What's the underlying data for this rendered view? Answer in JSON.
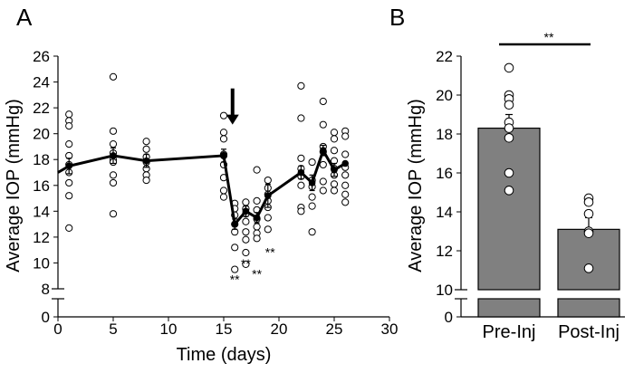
{
  "chart_data": [
    {
      "panel_label": "A",
      "type": "line",
      "title": "",
      "xlabel": "Time (days)",
      "ylabel": "Average IOP (mmHg)",
      "xlim": [
        0,
        30
      ],
      "ylim_upper": [
        8,
        26
      ],
      "ylim_lower": [
        0,
        1
      ],
      "xticks": [
        "0",
        "5",
        "10",
        "15",
        "20",
        "25",
        "30"
      ],
      "yticks_upper": [
        "8",
        "10",
        "12",
        "14",
        "16",
        "18",
        "20",
        "22",
        "24",
        "26"
      ],
      "yticks_lower": [
        "0"
      ],
      "mean_series": {
        "name": "Mean IOP",
        "x": [
          0,
          1,
          5,
          8,
          15,
          16,
          17,
          18,
          19,
          22,
          23,
          24,
          25,
          26
        ],
        "y": [
          17.0,
          17.5,
          18.3,
          17.9,
          18.3,
          13.0,
          14.0,
          13.5,
          15.2,
          17.0,
          16.2,
          18.7,
          17.2,
          17.7
        ],
        "sem": [
          0,
          0.6,
          0.6,
          0.5,
          0.5,
          0.4,
          0.4,
          0.4,
          0.9,
          0.5,
          0.6,
          0.4,
          0.5,
          0
        ]
      },
      "individual_points": [
        {
          "x": 1,
          "y": [
            21.5,
            21.0,
            20.6,
            19.2,
            18.3,
            17.6,
            17.0,
            16.2,
            15.2,
            12.7
          ]
        },
        {
          "x": 5,
          "y": [
            24.4,
            20.2,
            19.2,
            18.5,
            18.0,
            17.8,
            16.8,
            16.2,
            13.8
          ]
        },
        {
          "x": 8,
          "y": [
            19.4,
            18.8,
            18.2,
            17.8,
            17.3,
            16.8,
            16.4
          ]
        },
        {
          "x": 15,
          "y": [
            21.4,
            20.1,
            19.6,
            18.4,
            18.3,
            17.6,
            16.6,
            15.6,
            15.1
          ]
        },
        {
          "x": 16,
          "y": [
            14.6,
            14.2,
            13.7,
            13.0,
            12.4,
            11.2,
            9.5
          ]
        },
        {
          "x": 17,
          "y": [
            14.7,
            14.2,
            13.8,
            13.2,
            12.4,
            11.8,
            10.8,
            9.9
          ]
        },
        {
          "x": 18,
          "y": [
            17.2,
            14.8,
            14.1,
            13.4,
            12.8,
            12.3,
            11.9
          ]
        },
        {
          "x": 19,
          "y": [
            16.4,
            15.8,
            15.3,
            14.8,
            14.3,
            13.5,
            12.6
          ]
        },
        {
          "x": 22,
          "y": [
            23.7,
            21.2,
            18.1,
            17.3,
            16.7,
            16.0,
            14.3,
            14.0
          ]
        },
        {
          "x": 23,
          "y": [
            17.8,
            16.4,
            15.9,
            15.1,
            14.4,
            12.4
          ]
        },
        {
          "x": 24,
          "y": [
            22.5,
            20.7,
            19.0,
            18.6,
            17.6,
            16.3,
            15.6
          ]
        },
        {
          "x": 25,
          "y": [
            20.1,
            19.6,
            18.7,
            17.9,
            17.3,
            16.8,
            16.1,
            15.6
          ]
        },
        {
          "x": 26,
          "y": [
            20.2,
            19.8,
            18.4,
            17.4,
            16.8,
            16.0,
            15.3,
            14.7
          ]
        }
      ],
      "annotations": [
        {
          "text": "**",
          "x": 16,
          "y": 8.4
        },
        {
          "text": "**",
          "x": 17,
          "y": 9.6
        },
        {
          "text": "**",
          "x": 18,
          "y": 8.8
        },
        {
          "text": "**",
          "x": 19.2,
          "y": 10.5
        }
      ],
      "arrow": {
        "x": 15.8,
        "from_y": 23.5,
        "to_y": 20.7
      }
    },
    {
      "panel_label": "B",
      "type": "bar",
      "title": "",
      "xlabel": "",
      "ylabel": "Average IOP (mmHg)",
      "categories": [
        "Pre-Inj",
        "Post-Inj"
      ],
      "values": [
        18.3,
        13.1
      ],
      "sem": [
        0.7,
        0.6
      ],
      "bar_color": "#808080",
      "ylim_upper": [
        10,
        22
      ],
      "ylim_lower": [
        0,
        1
      ],
      "yticks_upper": [
        "10",
        "12",
        "14",
        "16",
        "18",
        "20",
        "22"
      ],
      "yticks_lower": [
        "0"
      ],
      "individual_points": [
        {
          "category": "Pre-Inj",
          "y": [
            21.4,
            20.0,
            19.8,
            19.5,
            18.6,
            18.3,
            17.8,
            16.0,
            15.1
          ]
        },
        {
          "category": "Post-Inj",
          "y": [
            14.7,
            14.5,
            13.9,
            13.0,
            12.9,
            11.1
          ]
        }
      ],
      "significance": {
        "text": "**",
        "between": [
          "Pre-Inj",
          "Post-Inj"
        ]
      }
    }
  ]
}
